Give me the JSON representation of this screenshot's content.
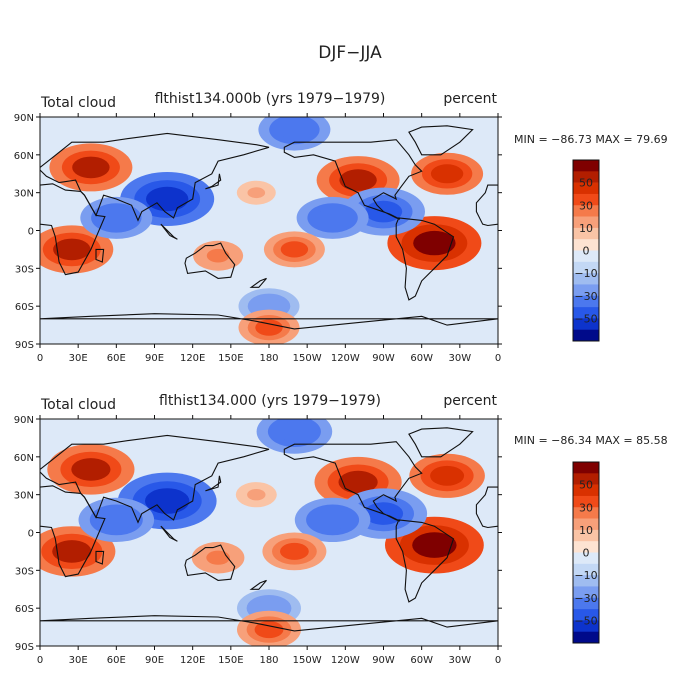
{
  "figure": {
    "title": "DJF−JJA"
  },
  "axes": {
    "lat_ticks": [
      "90N",
      "60N",
      "30N",
      "0",
      "30S",
      "60S",
      "90S"
    ],
    "lon_ticks": [
      "0",
      "30E",
      "60E",
      "90E",
      "120E",
      "150E",
      "180",
      "150W",
      "120W",
      "90W",
      "60W",
      "30W",
      "0"
    ]
  },
  "panels": [
    {
      "left_label": "Total cloud",
      "center_label": "flthist134.000b (yrs 1979−1979)",
      "right_label": "percent",
      "min_max": "MIN = −86.73 MAX =   79.69"
    },
    {
      "left_label": "Total cloud",
      "center_label": "flthist134.000 (yrs 1979−1979)",
      "right_label": "percent",
      "min_max": "MIN = −86.34 MAX =   85.58"
    }
  ],
  "colorbar": {
    "tick_labels": [
      "50",
      "30",
      "10",
      "0",
      "−10",
      "−30",
      "−50"
    ],
    "colors": [
      "#7f0000",
      "#b21e00",
      "#d93100",
      "#f04a18",
      "#f57a4a",
      "#f7a07a",
      "#fac4a6",
      "#fde3d2",
      "#dde9f8",
      "#c3d8f5",
      "#9fbcf0",
      "#7a9df0",
      "#4c78ee",
      "#2858e8",
      "#0d33cc",
      "#000a8a"
    ]
  },
  "chart_data": {
    "type": "heatmap",
    "variable": "Total cloud",
    "units": "percent",
    "title": "DJF−JJA",
    "x_range_deg": [
      0,
      360
    ],
    "y_range_deg": [
      -90,
      90
    ],
    "contour_levels": [
      -70,
      -60,
      -50,
      -40,
      -30,
      -20,
      -10,
      -5,
      0,
      5,
      10,
      20,
      30,
      40,
      50,
      60,
      70
    ],
    "panels": [
      {
        "dataset": "flthist134.000b",
        "years": "1979−1979",
        "min": -86.73,
        "max": 79.69
      },
      {
        "dataset": "flthist134.000",
        "years": "1979−1979",
        "min": -86.34,
        "max": 85.58
      }
    ],
    "features": [
      {
        "lon": 40,
        "lat": 50,
        "value": 50,
        "note": "N Eurasia winter cloud increase"
      },
      {
        "lon": 100,
        "lat": 25,
        "value": -60,
        "note": "SE Asia / Tibet decrease"
      },
      {
        "lon": 25,
        "lat": -15,
        "value": 50,
        "note": "Southern Africa increase"
      },
      {
        "lon": 310,
        "lat": -10,
        "value": 60,
        "note": "South America increase"
      },
      {
        "lon": 140,
        "lat": -20,
        "value": 20,
        "note": "N Australia increase"
      },
      {
        "lon": 250,
        "lat": 40,
        "value": 50,
        "note": "Western N America increase"
      },
      {
        "lon": 320,
        "lat": 45,
        "value": 40,
        "note": "N Atlantic increase"
      },
      {
        "lon": 270,
        "lat": 15,
        "value": -50,
        "note": "Central America decrease"
      },
      {
        "lon": 230,
        "lat": 10,
        "value": -40,
        "note": "E Pacific ITCZ decrease"
      },
      {
        "lon": 60,
        "lat": 10,
        "value": -40,
        "note": "Arabian Sea / Indian Ocean decrease"
      },
      {
        "lon": 180,
        "lat": -60,
        "value": -30,
        "note": "Southern Ocean decrease"
      },
      {
        "lon": 180,
        "lat": -77,
        "value": 30,
        "note": "Antarctic coast increase"
      },
      {
        "lon": 200,
        "lat": 80,
        "value": -40,
        "note": "Arctic decrease"
      },
      {
        "lon": 170,
        "lat": 30,
        "value": 10,
        "note": "N Pacific mild increase"
      },
      {
        "lon": 200,
        "lat": -15,
        "value": 30,
        "note": "S Pacific convergence increase"
      }
    ]
  }
}
